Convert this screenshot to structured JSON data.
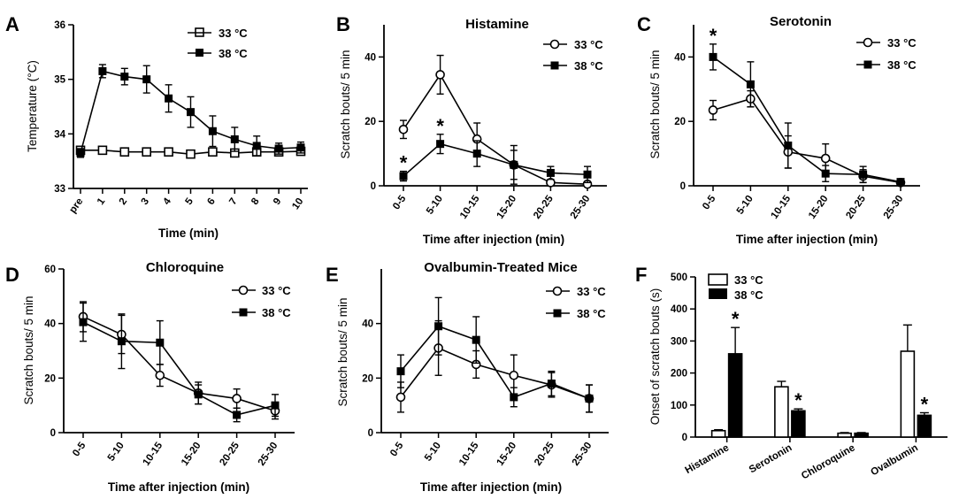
{
  "chart_data": [
    {
      "panel": "A",
      "type": "line",
      "title": "",
      "xlabel": "Time (min)",
      "ylabel": "Temperature (°C)",
      "categories": [
        "pre",
        "1",
        "2",
        "3",
        "4",
        "5",
        "6",
        "7",
        "8",
        "9",
        "10"
      ],
      "ylim": [
        33,
        36
      ],
      "yticks": [
        33,
        34,
        35,
        36
      ],
      "legend_position": "top-right",
      "series": [
        {
          "name": "33 °C",
          "marker": "open-square",
          "values": [
            33.7,
            33.7,
            33.67,
            33.67,
            33.67,
            33.63,
            33.67,
            33.65,
            33.67,
            33.67,
            33.68
          ],
          "errors": [
            0.04,
            0.03,
            0.03,
            0.03,
            0.03,
            0.03,
            0.03,
            0.03,
            0.05,
            0.05,
            0.05
          ]
        },
        {
          "name": "38 °C",
          "marker": "filled-square",
          "values": [
            33.65,
            35.15,
            35.05,
            35.0,
            34.65,
            34.4,
            34.05,
            33.9,
            33.78,
            33.73,
            33.75
          ],
          "errors": [
            0.08,
            0.12,
            0.15,
            0.25,
            0.25,
            0.28,
            0.28,
            0.22,
            0.18,
            0.1,
            0.1
          ]
        }
      ]
    },
    {
      "panel": "B",
      "type": "line",
      "title": "Histamine",
      "xlabel": "Time after injection (min)",
      "ylabel": "Scratch bouts/ 5 min",
      "categories": [
        "0-5",
        "5-10",
        "10-15",
        "15-20",
        "20-25",
        "25-30"
      ],
      "ylim": [
        0,
        50
      ],
      "yticks": [
        0,
        20,
        40
      ],
      "legend_position": "top-right",
      "annotations": [
        {
          "category": "0-5",
          "text": "*"
        },
        {
          "category": "5-10",
          "text": "*"
        }
      ],
      "series": [
        {
          "name": "33 °C",
          "marker": "open-circle",
          "values": [
            17.5,
            34.5,
            14.5,
            6.5,
            1.0,
            0.5
          ],
          "errors": [
            2.8,
            6.0,
            5.0,
            6.0,
            1.0,
            0.8
          ]
        },
        {
          "name": "38 °C",
          "marker": "filled-square",
          "values": [
            3.0,
            13.0,
            10.0,
            6.5,
            4.0,
            3.5
          ],
          "errors": [
            1.5,
            3.0,
            4.0,
            4.5,
            2.0,
            2.5
          ]
        }
      ]
    },
    {
      "panel": "C",
      "type": "line",
      "title": "Serotonin",
      "xlabel": "Time after injection (min)",
      "ylabel": "Scratch bouts/ 5 min",
      "categories": [
        "0-5",
        "5-10",
        "10-15",
        "15-20",
        "20-25",
        "25-30"
      ],
      "ylim": [
        0,
        50
      ],
      "yticks": [
        0,
        20,
        40
      ],
      "legend_position": "top-right",
      "annotations": [
        {
          "category": "0-5",
          "text": "*"
        }
      ],
      "series": [
        {
          "name": "33 °C",
          "marker": "open-circle",
          "values": [
            23.5,
            27.0,
            10.5,
            8.5,
            3.0,
            1.0
          ],
          "errors": [
            3.0,
            2.5,
            5.0,
            4.5,
            2.0,
            0.8
          ]
        },
        {
          "name": "38 °C",
          "marker": "filled-square",
          "values": [
            40.0,
            31.5,
            12.5,
            3.8,
            3.5,
            1.2
          ],
          "errors": [
            4.0,
            7.0,
            7.0,
            2.5,
            2.5,
            0.8
          ]
        }
      ]
    },
    {
      "panel": "D",
      "type": "line",
      "title": "Chloroquine",
      "xlabel": "Time after injection (min)",
      "ylabel": "Scratch bouts/ 5 min",
      "categories": [
        "0-5",
        "5-10",
        "10-15",
        "15-20",
        "20-25",
        "25-30"
      ],
      "ylim": [
        0,
        60
      ],
      "yticks": [
        0,
        20,
        40,
        60
      ],
      "legend_position": "top-right",
      "series": [
        {
          "name": "33 °C",
          "marker": "open-circle",
          "values": [
            42.5,
            36.0,
            21.0,
            14.5,
            12.5,
            8.0
          ],
          "errors": [
            5.5,
            7.0,
            4.0,
            4.0,
            3.5,
            3.0
          ]
        },
        {
          "name": "38 °C",
          "marker": "filled-square",
          "values": [
            40.5,
            33.5,
            33.0,
            14.0,
            6.5,
            10.0
          ],
          "errors": [
            7.0,
            10.0,
            8.0,
            3.5,
            2.5,
            4.0
          ]
        }
      ]
    },
    {
      "panel": "E",
      "type": "line",
      "title": "Ovalbumin-Treated Mice",
      "xlabel": "Time after injection (min)",
      "ylabel": "Scratch bouts/ 5 min",
      "categories": [
        "0-5",
        "5-10",
        "10-15",
        "15-20",
        "20-25",
        "25-30"
      ],
      "ylim": [
        0,
        60
      ],
      "yticks": [
        0,
        20,
        40
      ],
      "legend_position": "top-right",
      "series": [
        {
          "name": "33 °C",
          "marker": "open-circle",
          "values": [
            13.0,
            31.0,
            25.0,
            21.0,
            17.5,
            12.5
          ],
          "errors": [
            5.5,
            10.0,
            5.0,
            7.5,
            4.5,
            5.0
          ]
        },
        {
          "name": "38 °C",
          "marker": "filled-square",
          "values": [
            22.5,
            39.0,
            34.0,
            13.0,
            18.0,
            12.5
          ],
          "errors": [
            6.0,
            10.5,
            8.5,
            3.5,
            4.5,
            5.0
          ]
        }
      ]
    },
    {
      "panel": "F",
      "type": "bar",
      "title": "",
      "xlabel": "",
      "ylabel": "Onset of scratch bouts (s)",
      "categories": [
        "Histamine",
        "Serotonin",
        "Chloroquine",
        "Ovalbumin"
      ],
      "ylim": [
        0,
        500
      ],
      "yticks": [
        0,
        100,
        200,
        300,
        400,
        500
      ],
      "legend_position": "top-left",
      "annotations": [
        {
          "category": "Histamine",
          "text": "*"
        },
        {
          "category": "Serotonin",
          "text": "*"
        },
        {
          "category": "Ovalbumin",
          "text": "*"
        }
      ],
      "series": [
        {
          "name": "33 °C",
          "fill": "open",
          "values": [
            20,
            157,
            12,
            268
          ],
          "errors": [
            3,
            17,
            2,
            82
          ]
        },
        {
          "name": "38 °C",
          "fill": "filled",
          "values": [
            260,
            82,
            12,
            68
          ],
          "errors": [
            82,
            6,
            2,
            8
          ]
        }
      ]
    }
  ]
}
